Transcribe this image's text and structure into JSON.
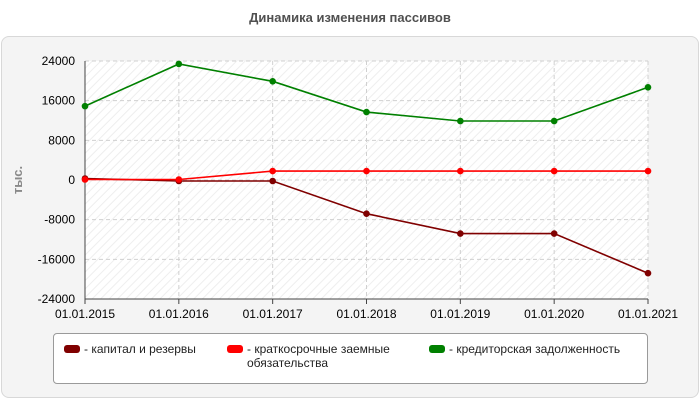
{
  "chart_data": {
    "type": "line",
    "title": "Динамика изменения пассивов",
    "xlabel": "",
    "ylabel": "тыс.",
    "categories": [
      "01.01.2015",
      "01.01.2016",
      "01.01.2017",
      "01.01.2018",
      "01.01.2019",
      "01.01.2020",
      "01.01.2021"
    ],
    "ylim": [
      -24000,
      24000
    ],
    "yticks": [
      24000,
      16000,
      8000,
      0,
      -8000,
      -16000,
      -24000
    ],
    "grid": true,
    "legend_position": "bottom",
    "series": [
      {
        "name": "капитал и резервы",
        "color": "#800000",
        "values": [
          300,
          -200,
          -200,
          -6800,
          -10800,
          -10800,
          -18800
        ]
      },
      {
        "name": "краткосрочные заемные обязательства",
        "color": "#ff0000",
        "values": [
          100,
          100,
          1800,
          1800,
          1800,
          1800,
          1800
        ]
      },
      {
        "name": "кредиторская задолженность",
        "color": "#008000",
        "values": [
          14900,
          23400,
          19900,
          13700,
          11900,
          11900,
          18700
        ]
      }
    ]
  }
}
